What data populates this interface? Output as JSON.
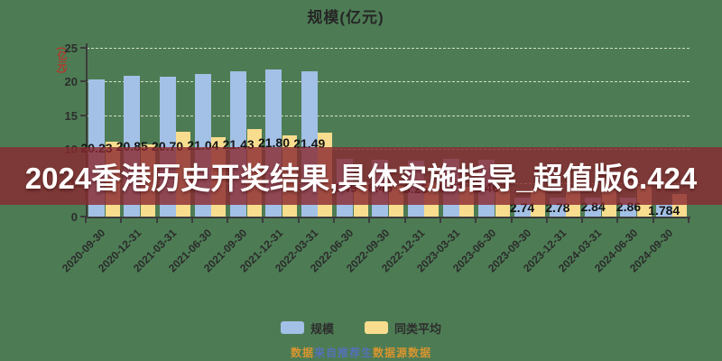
{
  "title": "规模(亿元)",
  "y_axis_unit": "(亿元)",
  "banner": {
    "text": "2024香港历史开奖结果,具体实施指导_超值版6.424",
    "background_color": "#892830",
    "text_color": "#ffffff"
  },
  "legend": [
    {
      "label": "规模",
      "color": "#a3c0e6"
    },
    {
      "label": "同类平均",
      "color": "#f8dd8f"
    }
  ],
  "watermark_segments": [
    {
      "text": "数据",
      "color": "#d9952f"
    },
    {
      "text": "来自推荐生",
      "color": "#5571b8"
    },
    {
      "text": "数据源数据",
      "color": "#d9952f"
    }
  ],
  "colors": {
    "background": "#4d7c54",
    "scale_bar": "#a3c0e6",
    "peer_avg_bar": "#f8dd8f",
    "axis": "#3c3c3c",
    "gridline": "#f5f5e4",
    "axis_name_red": "#b03a2e",
    "label_text": "#141414"
  },
  "chart_data": {
    "type": "bar",
    "title": "规模(亿元)",
    "xlabel": "",
    "ylabel": "(亿元)",
    "ylim": [
      0,
      25
    ],
    "y_ticks": [
      0,
      5,
      10,
      15,
      20,
      25
    ],
    "grid": "dashed-horizontal",
    "legend_position": "bottom",
    "categories": [
      "2020-09-30",
      "2020-12-31",
      "2021-03-31",
      "2021-06-30",
      "2021-09-30",
      "2021-12-31",
      "2022-03-31",
      "2022-06-30",
      "2022-09-30",
      "2022-12-31",
      "2023-03-31",
      "2023-06-30",
      "2023-09-30",
      "2023-12-31",
      "2024-03-31",
      "2024-06-30",
      "2024-09-30"
    ],
    "series": [
      {
        "name": "规模",
        "color": "#a3c0e6",
        "values": [
          20.23,
          20.85,
          20.7,
          21.04,
          21.43,
          21.8,
          21.49,
          8.49,
          8.45,
          8.25,
          8.47,
          8.46,
          2.74,
          2.78,
          2.84,
          2.86,
          1.784
        ],
        "labels": [
          "20.23",
          "20.85",
          "20.70",
          "21.04",
          "21.43",
          "21.80",
          "21.49",
          "8.49",
          "8.45",
          "8.25",
          "8.47",
          "8.46",
          "2.74",
          "2.78",
          "2.84",
          "2.86",
          "1.784"
        ]
      },
      {
        "name": "同类平均",
        "color": "#f8dd8f",
        "values": [
          11.1,
          10.7,
          12.5,
          11.7,
          12.9,
          12.0,
          12.4,
          5.0,
          4.6,
          4.9,
          4.4,
          4.1,
          4.0,
          3.8,
          3.9,
          4.6,
          3.4
        ],
        "labels": []
      }
    ]
  }
}
